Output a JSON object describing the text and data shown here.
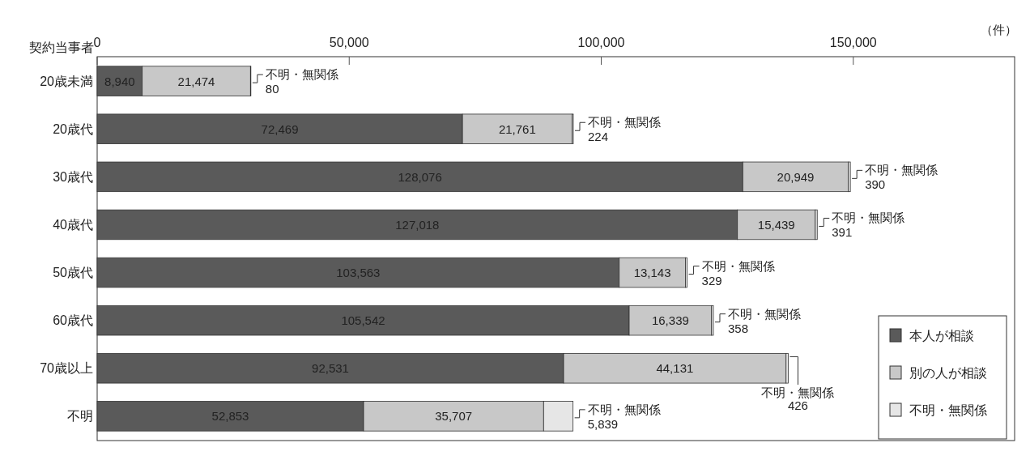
{
  "chart_data": {
    "type": "bar",
    "orientation": "horizontal",
    "stacked": true,
    "ylabel": "契約当事者",
    "xlabel": "（件）",
    "categories": [
      "20歳未満",
      "20歳代",
      "30歳代",
      "40歳代",
      "50歳代",
      "60歳代",
      "70歳以上",
      "不明"
    ],
    "xlim": [
      0,
      182000
    ],
    "xticks": [
      0,
      {
        "value": 50000,
        "label": "50,000"
      },
      {
        "value": 100000,
        "label": "100,000"
      },
      {
        "value": 150000,
        "label": "150,000"
      }
    ],
    "legend": "bottom right",
    "series": [
      {
        "name": "本人が相談",
        "color": "#5a5a5a",
        "values": [
          8940,
          72469,
          128076,
          127018,
          103563,
          105542,
          92531,
          52853
        ],
        "value_labels": [
          "8,940",
          "72,469",
          "128,076",
          "127,018",
          "103,563",
          "105,542",
          "92,531",
          "52,853"
        ]
      },
      {
        "name": "別の人が相談",
        "color": "#c8c8c8",
        "values": [
          21474,
          21761,
          20949,
          15439,
          13143,
          16339,
          44131,
          35707
        ],
        "value_labels": [
          "21,474",
          "21,761",
          "20,949",
          "15,439",
          "13,143",
          "16,339",
          "44,131",
          "35,707"
        ]
      },
      {
        "name": "不明・無関係",
        "color": "#e6e6e6",
        "values": [
          80,
          224,
          390,
          391,
          329,
          358,
          426,
          5839
        ],
        "value_labels": [
          "80",
          "224",
          "390",
          "391",
          "329",
          "358",
          "426",
          "5,839"
        ]
      }
    ]
  }
}
